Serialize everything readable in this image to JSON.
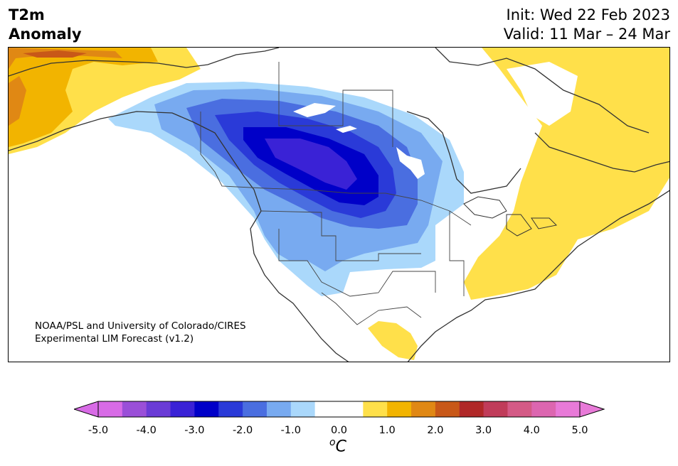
{
  "title": {
    "line1": "T2m",
    "line2": "Anomaly"
  },
  "dates": {
    "init": "Init: Wed 22 Feb 2023",
    "valid": "Valid: 11 Mar – 24 Mar"
  },
  "credit": {
    "line1": "NOAA/PSL and University of Colorado/CIRES",
    "line2": "Experimental LIM Forecast (v1.2)"
  },
  "colorbar": {
    "unit_base": "C",
    "unit_prefix": "o",
    "ticks": [
      "-5.0",
      "-4.0",
      "-3.0",
      "-2.0",
      "-1.0",
      "0.0",
      "1.0",
      "2.0",
      "3.0",
      "4.0",
      "5.0"
    ],
    "colors": [
      "#d86be6",
      "#9a4fd8",
      "#6a3bd6",
      "#3a22d6",
      "#0000c8",
      "#2a3ad8",
      "#4a6ee0",
      "#78aaf0",
      "#aad8fb",
      "#ffffff",
      "#ffffff",
      "#ffe04a",
      "#f2b400",
      "#e08814",
      "#c85818",
      "#b02828",
      "#c03c5a",
      "#d45a86",
      "#dc66b0",
      "#e87ad8"
    ],
    "under_color": "#d86be6",
    "over_color": "#e87ad8"
  },
  "map": {
    "region": "North America",
    "variable": "2m temperature anomaly",
    "colors": {
      "land_outline": "#333333",
      "cold_1": "#aad8fb",
      "cold_2": "#78aaf0",
      "cold_3": "#4a6ee0",
      "cold_4": "#2a3ad8",
      "cold_5": "#0000c8",
      "cold_6": "#3a22d6",
      "warm_1": "#ffe04a",
      "warm_2": "#f2b400",
      "warm_3": "#e08814",
      "warm_4": "#c85818"
    }
  }
}
